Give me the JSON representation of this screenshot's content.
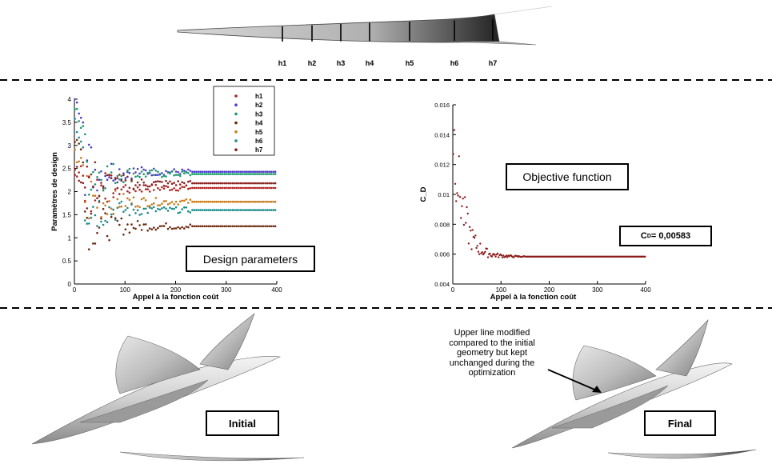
{
  "top_section": {
    "stations": [
      "h1",
      "h2",
      "h3",
      "h4",
      "h5",
      "h6",
      "h7"
    ]
  },
  "labels": {
    "design_parameters": "Design parameters",
    "objective_function": "Objective function",
    "cd_value_prefix": "C",
    "cd_value_sub": "D",
    "cd_value_suffix": " = 0,00583",
    "initial": "Initial",
    "final": "Final",
    "annotation": "Upper line modified compared to the initial geometry but kept unchanged during the optimization"
  },
  "chart_data": [
    {
      "type": "scatter",
      "xlabel": "Appel à la fonction coût",
      "ylabel": "Paramètres de design",
      "xlim": [
        0,
        400
      ],
      "ylim": [
        0,
        4
      ],
      "xticks": [
        0,
        100,
        200,
        300,
        400
      ],
      "yticks": [
        0,
        0.5,
        1,
        1.5,
        2,
        2.5,
        3,
        3.5,
        4
      ],
      "legend": "top-right",
      "series": [
        {
          "name": "h1",
          "color": "#b22222",
          "start": 2.45,
          "final": 2.08
        },
        {
          "name": "h2",
          "color": "#4b3cc8",
          "start": 3.95,
          "final": 2.43
        },
        {
          "name": "h3",
          "color": "#1a9a6a",
          "start": 3.7,
          "final": 2.38
        },
        {
          "name": "h4",
          "color": "#6a2a10",
          "start": 3.2,
          "final": 1.25
        },
        {
          "name": "h5",
          "color": "#c87a1a",
          "start": 2.8,
          "final": 1.78
        },
        {
          "name": "h6",
          "color": "#1a8a8a",
          "start": 3.4,
          "final": 1.6
        },
        {
          "name": "h7",
          "color": "#8a2020",
          "start": 2.4,
          "final": 2.18
        }
      ]
    },
    {
      "type": "scatter",
      "xlabel": "Appel à la fonction coût",
      "ylabel": "C_D",
      "xlim": [
        0,
        400
      ],
      "ylim": [
        0.004,
        0.016
      ],
      "xticks": [
        0,
        100,
        200,
        300,
        400
      ],
      "yticks": [
        0.004,
        0.006,
        0.008,
        0.01,
        0.012,
        0.014,
        0.016
      ],
      "ytick_labels": [
        "0.004",
        "0.006",
        "0.008",
        "0.01",
        "0.012",
        "0.014",
        "0.016"
      ],
      "color": "#8b1a1a",
      "start": 0.0148,
      "final": 0.00583
    }
  ]
}
